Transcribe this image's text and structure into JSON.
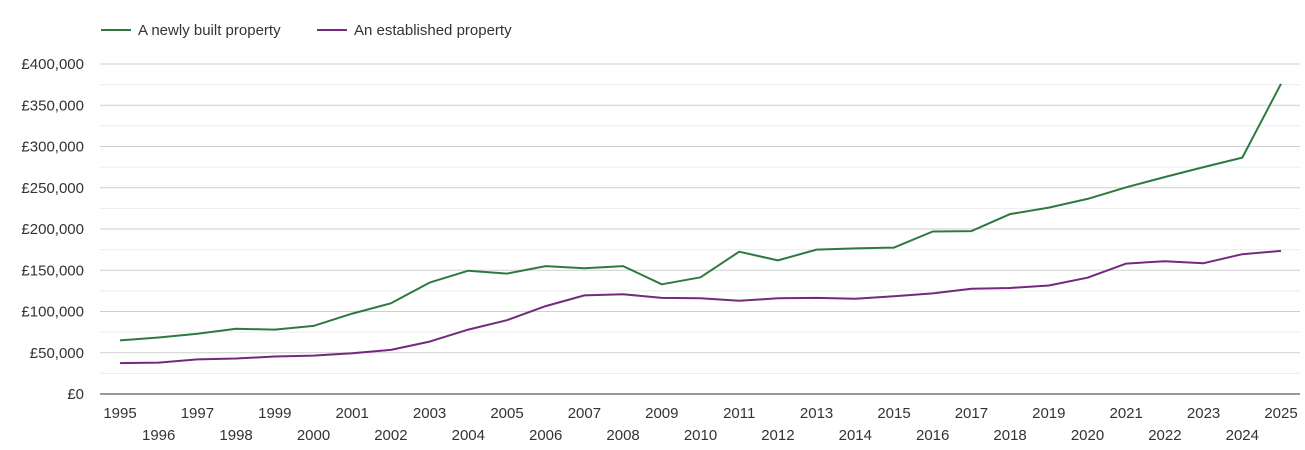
{
  "chart_data": {
    "type": "line",
    "title": "",
    "xlabel": "",
    "ylabel": "",
    "x": [
      1995,
      1996,
      1997,
      1998,
      1999,
      2000,
      2001,
      2002,
      2003,
      2004,
      2005,
      2006,
      2007,
      2008,
      2009,
      2010,
      2011,
      2012,
      2013,
      2014,
      2015,
      2016,
      2017,
      2018,
      2019,
      2020,
      2021,
      2022,
      2023,
      2024,
      2025
    ],
    "ylim": [
      0,
      400000
    ],
    "y_ticks": [
      0,
      50000,
      100000,
      150000,
      200000,
      250000,
      300000,
      350000,
      400000
    ],
    "y_tick_labels": [
      "£0",
      "£50,000",
      "£100,000",
      "£150,000",
      "£200,000",
      "£250,000",
      "£300,000",
      "£350,000",
      "£400,000"
    ],
    "grid": true,
    "legend_position": "top-left",
    "series": [
      {
        "name": "A newly built property",
        "color": "#2e7a3e",
        "values": [
          65000,
          68500,
          73000,
          79000,
          78000,
          82500,
          97500,
          110000,
          135000,
          149500,
          146000,
          155000,
          152500,
          155000,
          133000,
          141500,
          172500,
          162000,
          175000,
          176500,
          177500,
          197000,
          197500,
          218000,
          226000,
          236500,
          250500,
          263000,
          275000,
          286500,
          376000
        ]
      },
      {
        "name": "An established property",
        "color": "#74297f",
        "values": [
          37500,
          38000,
          42000,
          43000,
          45500,
          46500,
          49500,
          53500,
          63500,
          78000,
          89500,
          106500,
          119500,
          121000,
          116500,
          116000,
          113000,
          116000,
          116500,
          115500,
          118500,
          122000,
          127500,
          128500,
          131500,
          141000,
          158000,
          161000,
          158500,
          169500,
          173500
        ]
      }
    ]
  }
}
